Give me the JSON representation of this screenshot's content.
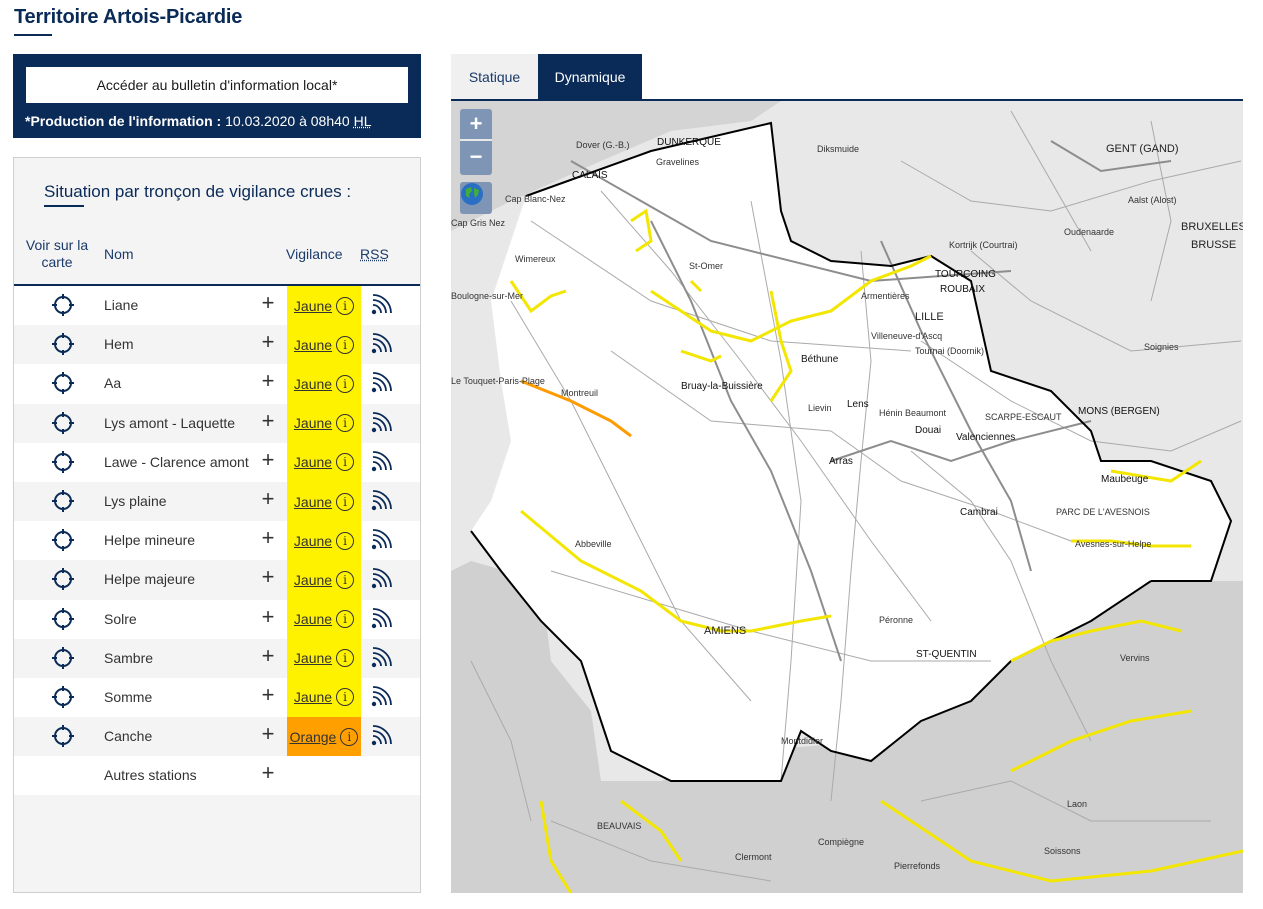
{
  "page": {
    "title": "Territoire Artois-Picardie"
  },
  "info": {
    "bulletin_button": "Accéder au bulletin d'information local*",
    "production_label": "*Production de l'information :",
    "production_value": "10.03.2020 à 08h40",
    "production_tz": "HL"
  },
  "panel": {
    "title": "Situation par tronçon de vigilance crues :",
    "headers": {
      "voir": "Voir sur la carte",
      "nom": "Nom",
      "vigilance": "Vigilance",
      "rss": "RSS"
    },
    "rows": [
      {
        "nom": "Liane",
        "vigilance": "Jaune",
        "level": "jaune"
      },
      {
        "nom": "Hem",
        "vigilance": "Jaune",
        "level": "jaune"
      },
      {
        "nom": "Aa",
        "vigilance": "Jaune",
        "level": "jaune"
      },
      {
        "nom": "Lys amont - Laquette",
        "vigilance": "Jaune",
        "level": "jaune"
      },
      {
        "nom": "Lawe - Clarence amont",
        "vigilance": "Jaune",
        "level": "jaune"
      },
      {
        "nom": "Lys plaine",
        "vigilance": "Jaune",
        "level": "jaune"
      },
      {
        "nom": "Helpe mineure",
        "vigilance": "Jaune",
        "level": "jaune"
      },
      {
        "nom": "Helpe majeure",
        "vigilance": "Jaune",
        "level": "jaune"
      },
      {
        "nom": "Solre",
        "vigilance": "Jaune",
        "level": "jaune"
      },
      {
        "nom": "Sambre",
        "vigilance": "Jaune",
        "level": "jaune"
      },
      {
        "nom": "Somme",
        "vigilance": "Jaune",
        "level": "jaune"
      },
      {
        "nom": "Canche",
        "vigilance": "Orange",
        "level": "orange"
      }
    ],
    "other": "Autres stations"
  },
  "tabs": {
    "statique": "Statique",
    "dynamique": "Dynamique",
    "active": "dynamique"
  },
  "map": {
    "zoom_in": "+",
    "zoom_out": "−",
    "colors": {
      "jaune": "#fff200",
      "orange": "#ffa000",
      "navy": "#0a2a57"
    },
    "labels": [
      {
        "t": "DUNKERQUE",
        "cls": "city"
      },
      {
        "t": "Gravelines",
        "cls": ""
      },
      {
        "t": "CALAIS",
        "cls": "city"
      },
      {
        "t": "Cap Blanc-Nez",
        "cls": ""
      },
      {
        "t": "Cap Gris Nez",
        "cls": ""
      },
      {
        "t": "Wimereux",
        "cls": ""
      },
      {
        "t": "St-Omer",
        "cls": ""
      },
      {
        "t": "Béthune",
        "cls": "city"
      },
      {
        "t": "Bruay-la-Buissière",
        "cls": "city"
      },
      {
        "t": "Lens",
        "cls": "city"
      },
      {
        "t": "LILLE",
        "cls": "big"
      },
      {
        "t": "TOURCOING",
        "cls": "city"
      },
      {
        "t": "ROUBAIX",
        "cls": "city"
      },
      {
        "t": "Douai",
        "cls": "city"
      },
      {
        "t": "Arras",
        "cls": "city"
      },
      {
        "t": "Valenciennes",
        "cls": "city"
      },
      {
        "t": "Cambrai",
        "cls": "city"
      },
      {
        "t": "Montreuil",
        "cls": ""
      },
      {
        "t": "Abbeville",
        "cls": ""
      },
      {
        "t": "AMIENS",
        "cls": "big"
      },
      {
        "t": "Péronne",
        "cls": ""
      },
      {
        "t": "ST-QUENTIN",
        "cls": "city"
      },
      {
        "t": "Montdidier",
        "cls": ""
      },
      {
        "t": "Maubeuge",
        "cls": "city"
      },
      {
        "t": "MONS (BERGEN)",
        "cls": "city"
      },
      {
        "t": "GENT (GAND)",
        "cls": "big"
      },
      {
        "t": "BRUXELLES",
        "cls": "big"
      },
      {
        "t": "BRUSSE",
        "cls": "big"
      },
      {
        "t": "Laon",
        "cls": ""
      },
      {
        "t": "Soissons",
        "cls": ""
      },
      {
        "t": "Compiègne",
        "cls": ""
      },
      {
        "t": "BEAUVAIS",
        "cls": ""
      },
      {
        "t": "Lievin",
        "cls": ""
      },
      {
        "t": "Hénin Beaumont",
        "cls": ""
      },
      {
        "t": "Vervins",
        "cls": ""
      },
      {
        "t": "SCARPE-ESCAUT",
        "cls": ""
      },
      {
        "t": "PARC DE L'AVESNOIS",
        "cls": ""
      },
      {
        "t": "Diksmuide",
        "cls": ""
      },
      {
        "t": "Kortrijk (Courtrai)",
        "cls": ""
      },
      {
        "t": "Oudenaarde",
        "cls": ""
      },
      {
        "t": "Aalst (Alost)",
        "cls": ""
      },
      {
        "t": "Soignies",
        "cls": ""
      },
      {
        "t": "Tournai (Doornik)",
        "cls": ""
      },
      {
        "t": "Villeneuve-d'Ascq",
        "cls": ""
      },
      {
        "t": "Armentières",
        "cls": ""
      },
      {
        "t": "Clermont",
        "cls": ""
      },
      {
        "t": "Pierrefonds",
        "cls": ""
      },
      {
        "t": "Avesnes-sur-Helpe",
        "cls": ""
      },
      {
        "t": "Dover (G.-B.)",
        "cls": ""
      },
      {
        "t": "Boulogne-sur-Mer",
        "cls": ""
      },
      {
        "t": "Le Touquet-Paris-Plage",
        "cls": ""
      }
    ]
  }
}
